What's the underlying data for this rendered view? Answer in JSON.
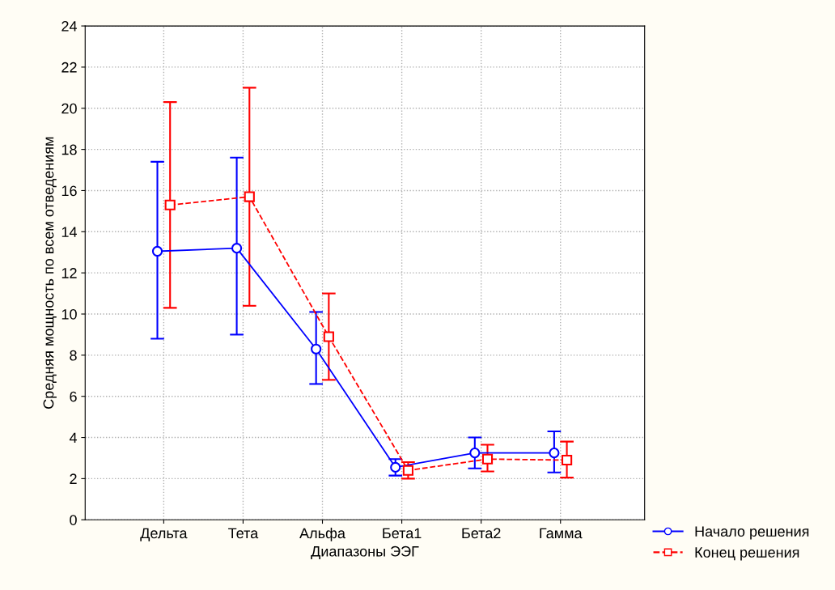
{
  "chart_data": {
    "type": "line",
    "xlabel": "Диапазоны ЭЭГ",
    "ylabel": "Средняя мощность по всем отведениям",
    "categories": [
      "Дельта",
      "Тета",
      "Альфа",
      "Бета1",
      "Бета2",
      "Гамма"
    ],
    "series": [
      {
        "name": "Начало решения",
        "color": "#0000ff",
        "marker": "circle",
        "line_style": "solid",
        "values": [
          13.05,
          13.2,
          8.3,
          2.55,
          3.25,
          3.25
        ],
        "errors": [
          [
            8.8,
            17.4
          ],
          [
            9.0,
            17.6
          ],
          [
            6.6,
            10.1
          ],
          [
            2.15,
            2.95
          ],
          [
            2.5,
            4.0
          ],
          [
            2.3,
            4.3
          ]
        ]
      },
      {
        "name": "Конец решения",
        "color": "#ff0000",
        "marker": "square",
        "line_style": "dashed",
        "values": [
          15.3,
          15.7,
          8.9,
          2.4,
          2.95,
          2.9
        ],
        "errors": [
          [
            10.3,
            20.3
          ],
          [
            10.4,
            21.0
          ],
          [
            6.8,
            11.0
          ],
          [
            2.0,
            2.8
          ],
          [
            2.35,
            3.65
          ],
          [
            2.05,
            3.8
          ]
        ]
      }
    ],
    "ylim": [
      0,
      24
    ],
    "yticks": [
      0,
      2,
      4,
      6,
      8,
      10,
      12,
      14,
      16,
      18,
      20,
      22,
      24
    ],
    "grid": true,
    "legend": "bottom right"
  }
}
